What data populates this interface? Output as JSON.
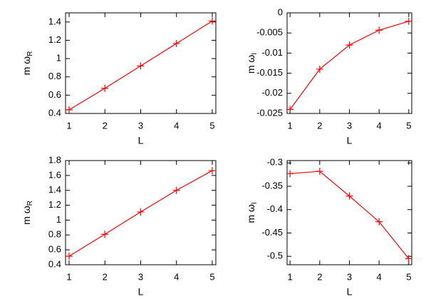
{
  "chart_data": [
    {
      "type": "line",
      "xlabel": "L",
      "ylabel": "m ω",
      "ylabel_subscript": "R",
      "x": [
        1,
        2,
        3,
        4,
        5
      ],
      "xlim": [
        0.9,
        5.1
      ],
      "xticks": [
        1,
        2,
        3,
        4,
        5
      ],
      "ylim": [
        0.4,
        1.5
      ],
      "yticks": [
        0.4,
        0.6,
        0.8,
        1,
        1.2,
        1.4
      ],
      "series": [
        {
          "color": "#ff0000",
          "values": [
            0.44,
            0.675,
            0.92,
            1.165,
            1.41
          ]
        }
      ]
    },
    {
      "type": "line",
      "xlabel": "L",
      "ylabel": "m ω",
      "ylabel_subscript": "I",
      "x": [
        1,
        2,
        3,
        4,
        5
      ],
      "xlim": [
        0.9,
        5.1
      ],
      "xticks": [
        1,
        2,
        3,
        4,
        5
      ],
      "ylim": [
        -0.025,
        0
      ],
      "yticks": [
        -0.025,
        -0.02,
        -0.015,
        -0.01,
        -0.005,
        0
      ],
      "series": [
        {
          "color": "#ff0000",
          "values": [
            -0.024,
            -0.014,
            -0.008,
            -0.0043,
            -0.0021
          ]
        }
      ]
    },
    {
      "type": "line",
      "xlabel": "L",
      "ylabel": "m ω",
      "ylabel_subscript": "R",
      "x": [
        1,
        2,
        3,
        4,
        5
      ],
      "xlim": [
        0.9,
        5.1
      ],
      "xticks": [
        1,
        2,
        3,
        4,
        5
      ],
      "ylim": [
        0.4,
        1.8
      ],
      "yticks": [
        0.4,
        0.6,
        0.8,
        1,
        1.2,
        1.4,
        1.6,
        1.8
      ],
      "series": [
        {
          "color": "#ff0000",
          "values": [
            0.515,
            0.81,
            1.11,
            1.4,
            1.665
          ]
        }
      ]
    },
    {
      "type": "line",
      "xlabel": "L",
      "ylabel": "m ω",
      "ylabel_subscript": "I",
      "x": [
        1,
        2,
        3,
        4,
        5
      ],
      "xlim": [
        0.9,
        5.1
      ],
      "xticks": [
        1,
        2,
        3,
        4,
        5
      ],
      "ylim": [
        -0.518,
        -0.295
      ],
      "yticks": [
        -0.5,
        -0.45,
        -0.4,
        -0.35,
        -0.3
      ],
      "series": [
        {
          "color": "#ff0000",
          "values": [
            -0.323,
            -0.318,
            -0.371,
            -0.426,
            -0.505
          ]
        }
      ]
    }
  ]
}
